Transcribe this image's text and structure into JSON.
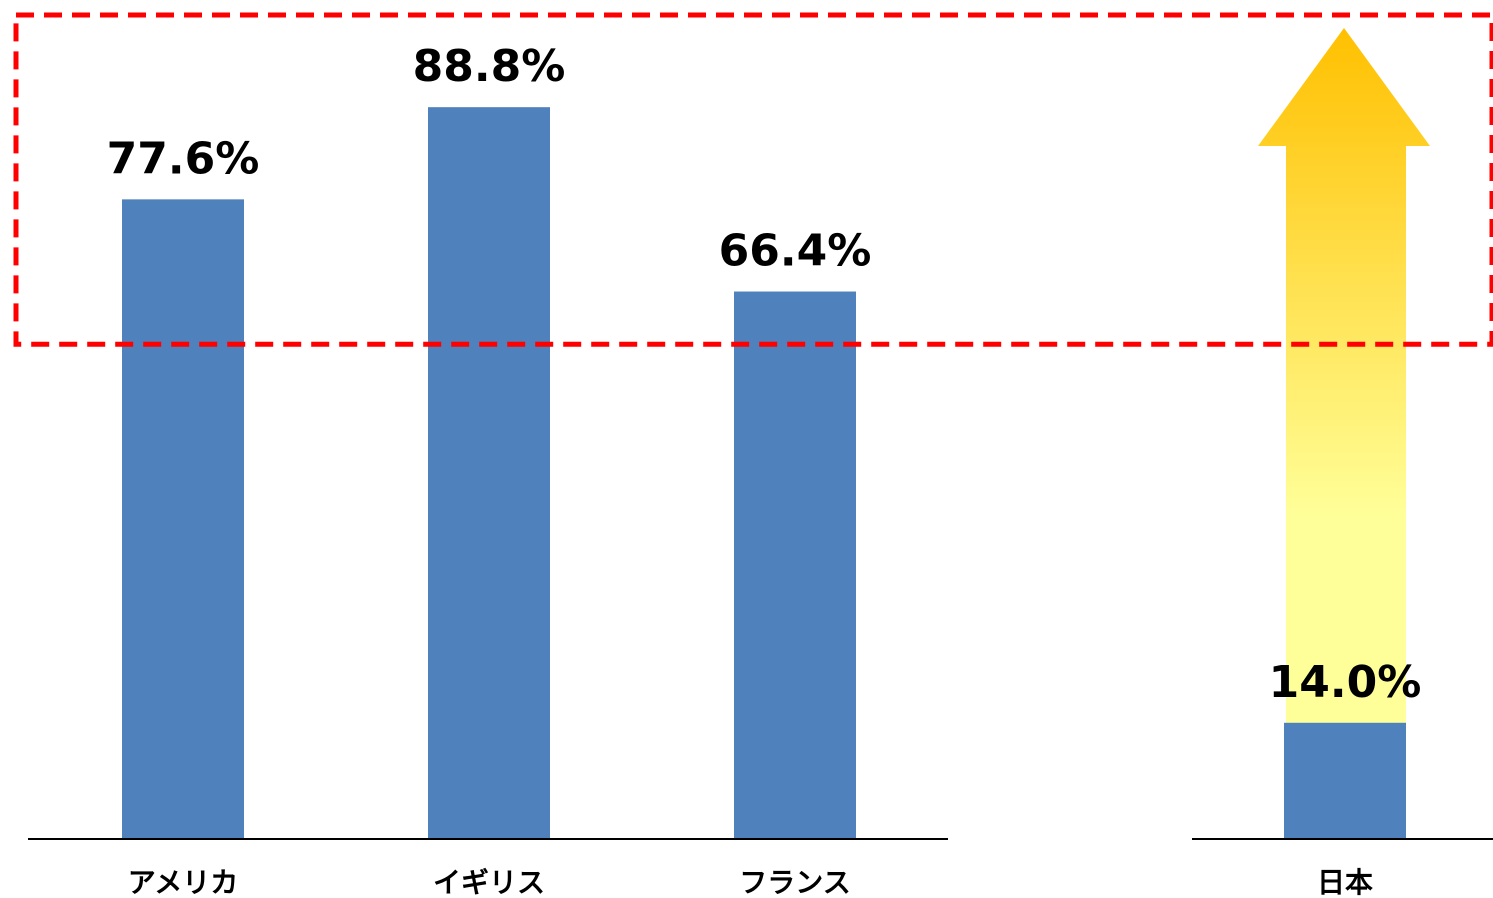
{
  "chart_data": {
    "type": "bar",
    "categories": [
      "アメリカ",
      "イギリス",
      "フランス",
      "日本"
    ],
    "values": [
      77.6,
      88.8,
      66.4,
      14.0
    ],
    "value_labels": [
      "77.6%",
      "88.8%",
      "66.4%",
      "14.0%"
    ],
    "unit": "%",
    "ylim": [
      0,
      100
    ],
    "grid": false,
    "legend": "none",
    "bar_color": "#4F81BD",
    "annotations": {
      "highlight_box": {
        "style": "dashed",
        "color": "#FF0000",
        "threshold_value": 60
      },
      "arrow": {
        "category": "日本",
        "direction": "up",
        "gradient": [
          "#FFFF99",
          "#FFC000"
        ]
      }
    }
  }
}
